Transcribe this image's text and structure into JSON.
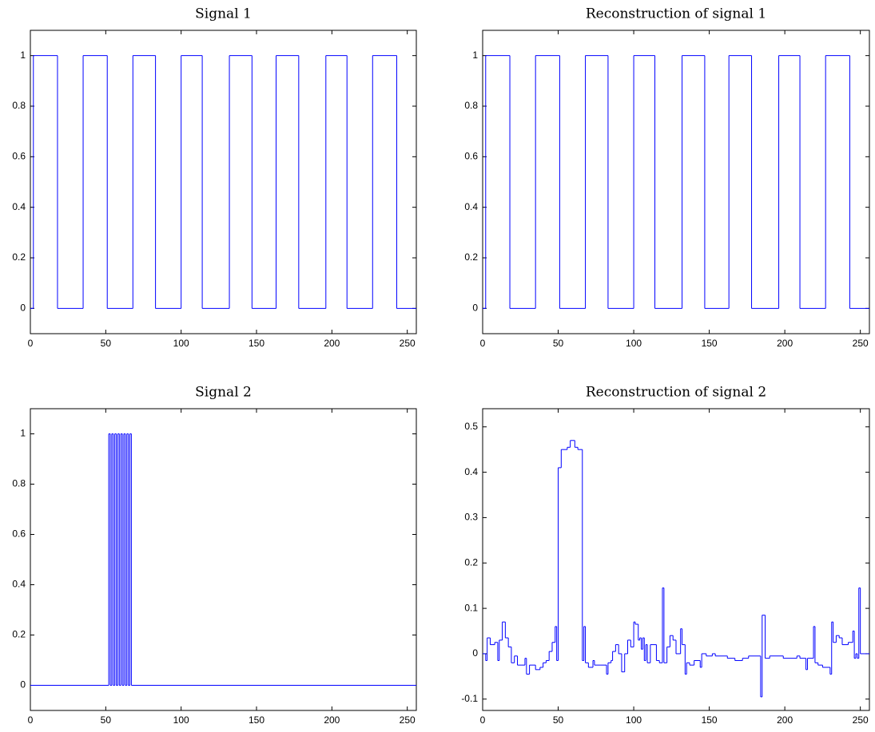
{
  "chart_data": [
    {
      "type": "line",
      "title": "Signal 1",
      "drawstyle": "steps",
      "color": "#0000ff",
      "x": [
        0,
        2,
        18,
        35,
        51,
        68,
        83,
        100,
        114,
        132,
        147,
        163,
        178,
        196,
        210,
        227,
        243
      ],
      "values": [
        0,
        1,
        0,
        1,
        0,
        1,
        0,
        1,
        0,
        1,
        0,
        1,
        0,
        1,
        0,
        1,
        0
      ],
      "xlim": [
        0,
        256
      ],
      "xticks": [
        0,
        50,
        100,
        150,
        200,
        250
      ],
      "ylim": [
        -0.1,
        1.1
      ],
      "yticks": [
        0,
        0.2,
        0.4,
        0.6,
        0.8,
        1
      ]
    },
    {
      "type": "line",
      "title": "Reconstruction of signal 1",
      "drawstyle": "steps",
      "color": "#0000ff",
      "x": [
        0,
        2,
        18,
        35,
        51,
        68,
        83,
        100,
        114,
        132,
        147,
        163,
        178,
        196,
        210,
        227,
        243
      ],
      "values": [
        0,
        1,
        0,
        1,
        0,
        1,
        0,
        1,
        0,
        1,
        0,
        1,
        0,
        1,
        0,
        1,
        0
      ],
      "xlim": [
        0,
        256
      ],
      "xticks": [
        0,
        50,
        100,
        150,
        200,
        250
      ],
      "ylim": [
        -0.1,
        1.1
      ],
      "yticks": [
        0,
        0.2,
        0.4,
        0.6,
        0.8,
        1
      ]
    },
    {
      "type": "line",
      "title": "Signal 2",
      "drawstyle": "steps",
      "color": "#0000ff",
      "x": [
        0,
        52,
        53,
        54,
        55,
        56,
        57,
        58,
        59,
        60,
        61,
        62,
        63,
        64,
        65,
        66,
        67
      ],
      "values": [
        0,
        1,
        0,
        1,
        0,
        1,
        0,
        1,
        0,
        1,
        0,
        1,
        0,
        1,
        0,
        1,
        0
      ],
      "xlim": [
        0,
        256
      ],
      "xticks": [
        0,
        50,
        100,
        150,
        200,
        250
      ],
      "ylim": [
        -0.1,
        1.1
      ],
      "yticks": [
        0,
        0.2,
        0.4,
        0.6,
        0.8,
        1
      ]
    },
    {
      "type": "line",
      "title": "Reconstruction of signal 2",
      "drawstyle": "steps",
      "color": "#0000ff",
      "x": [
        0,
        2,
        3,
        5,
        8,
        10,
        11,
        13,
        15,
        17,
        19,
        21,
        23,
        28,
        29,
        31,
        35,
        38,
        40,
        42,
        44,
        46,
        48,
        49,
        50,
        52,
        56,
        58,
        61,
        63,
        66,
        67,
        68,
        70,
        73,
        74,
        78,
        82,
        83,
        85,
        86,
        88,
        90,
        92,
        94,
        96,
        98,
        100,
        101,
        103,
        104,
        105,
        106,
        107,
        108,
        109,
        111,
        115,
        117,
        119,
        120,
        122,
        124,
        126,
        128,
        131,
        132,
        134,
        135,
        137,
        140,
        144,
        145,
        148,
        152,
        154,
        162,
        167,
        172,
        176,
        184,
        185,
        187,
        190,
        199,
        208,
        210,
        214,
        215,
        219,
        220,
        222,
        225,
        230,
        231,
        232,
        234,
        236,
        238,
        242,
        245,
        246,
        247,
        248,
        249,
        250,
        254
      ],
      "values": [
        0,
        -0.015,
        0.035,
        0.02,
        0.025,
        -0.015,
        0.03,
        0.07,
        0.035,
        0.015,
        -0.02,
        -0.005,
        -0.025,
        -0.01,
        -0.045,
        -0.025,
        -0.035,
        -0.03,
        -0.02,
        -0.015,
        0.005,
        0.025,
        0.06,
        -0.015,
        0.41,
        0.45,
        0.455,
        0.47,
        0.455,
        0.45,
        -0.015,
        0.06,
        -0.02,
        -0.03,
        -0.015,
        -0.025,
        -0.025,
        -0.045,
        -0.02,
        -0.015,
        0.005,
        0.02,
        0,
        -0.04,
        0,
        0.03,
        0.015,
        0.07,
        0.065,
        0.03,
        0.035,
        0.01,
        0.035,
        -0.015,
        0.02,
        -0.02,
        0.02,
        -0.015,
        -0.02,
        0.145,
        -0.02,
        0.015,
        0.04,
        0.03,
        0,
        0.055,
        0.02,
        -0.045,
        -0.02,
        -0.025,
        -0.015,
        -0.03,
        0,
        -0.005,
        0,
        -0.005,
        -0.01,
        -0.015,
        -0.01,
        -0.005,
        -0.095,
        0.085,
        -0.01,
        -0.005,
        -0.01,
        -0.005,
        -0.01,
        -0.035,
        -0.01,
        0.06,
        -0.02,
        -0.025,
        -0.03,
        -0.045,
        0.07,
        0.025,
        0.04,
        0.035,
        0.02,
        0.025,
        0.05,
        -0.01,
        0,
        -0.01,
        0.145,
        0,
        0
      ],
      "xlim": [
        0,
        256
      ],
      "xticks": [
        0,
        50,
        100,
        150,
        200,
        250
      ],
      "ylim": [
        -0.125,
        0.54
      ],
      "yticks": [
        -0.1,
        0,
        0.1,
        0.2,
        0.3,
        0.4,
        0.5
      ]
    }
  ]
}
